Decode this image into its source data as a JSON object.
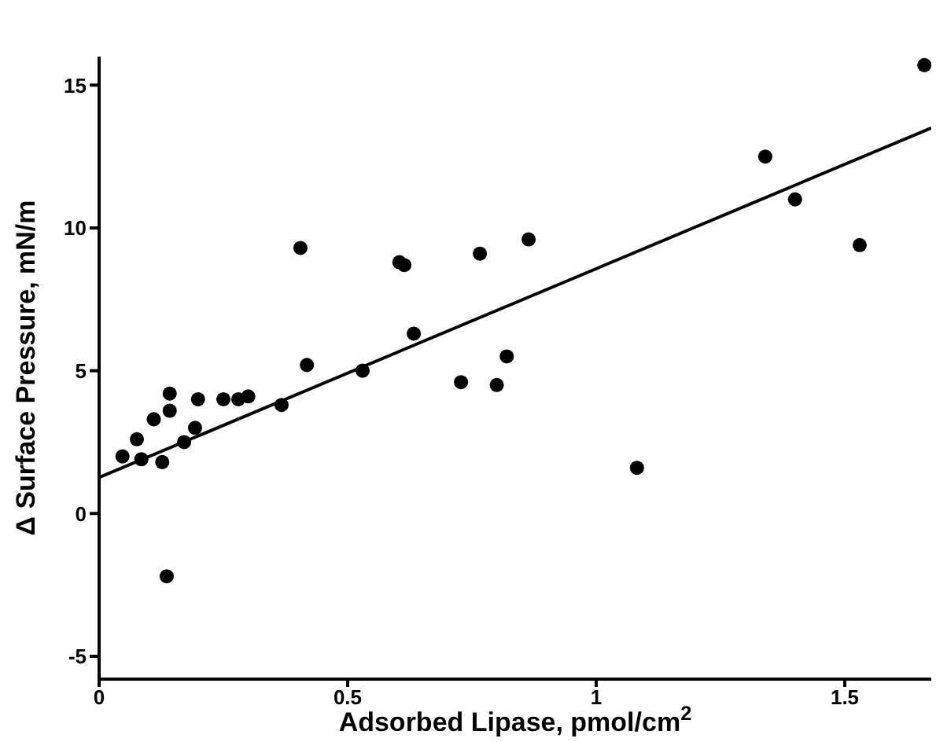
{
  "chart_data": {
    "type": "scatter",
    "xlabel": "Adsorbed Lipase, pmol/cm$^{2}$",
    "ylabel": "Δ Surface Pressure, mN/m",
    "xlim": [
      0,
      1.674
    ],
    "ylim": [
      -5.8,
      16
    ],
    "xticks": [
      0,
      0.5,
      1,
      1.5
    ],
    "yticks": [
      -5,
      0,
      5,
      10,
      15
    ],
    "grid": false,
    "marker": "circle",
    "series": [
      {
        "color": "#000000",
        "x": [
          0.047,
          0.076,
          0.085,
          0.11,
          0.127,
          0.142,
          0.142,
          0.136,
          0.171,
          0.193,
          0.199,
          0.25,
          0.28,
          0.3,
          0.367,
          0.405,
          0.418,
          0.53,
          0.604,
          0.614,
          0.633,
          0.728,
          0.766,
          0.8,
          0.82,
          0.864,
          1.082,
          1.34,
          1.4,
          1.53,
          1.66
        ],
        "values": [
          2.0,
          2.6,
          1.9,
          3.3,
          1.8,
          4.2,
          3.6,
          -2.2,
          2.5,
          3.0,
          4.0,
          4.0,
          4.0,
          4.1,
          3.8,
          9.3,
          5.2,
          5.0,
          8.8,
          8.7,
          6.3,
          4.6,
          9.1,
          4.5,
          5.5,
          9.6,
          1.6,
          12.5,
          11.0,
          9.4,
          15.7
        ]
      },
      {
        "type": "line",
        "color": "#000000",
        "x": [
          0,
          1.674
        ],
        "values": [
          1.26,
          13.5
        ],
        "line_style": "solid",
        "marker": "none"
      }
    ]
  }
}
